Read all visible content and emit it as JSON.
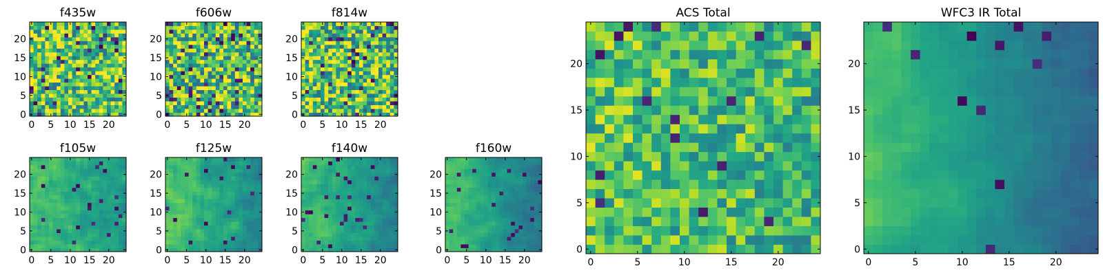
{
  "chart_data": [
    {
      "type": "heatmap",
      "title": "f435w",
      "xticks": [
        "0",
        "5",
        "10",
        "15",
        "20"
      ],
      "yticks": [
        "0",
        "5",
        "10",
        "15",
        "20"
      ],
      "grid_size": 25,
      "colormap": "viridis",
      "seed": 11,
      "gradient": 0.0,
      "noise": 0.7,
      "dark_fraction": 0.05
    },
    {
      "type": "heatmap",
      "title": "f606w",
      "xticks": [
        "0",
        "5",
        "10",
        "15",
        "20"
      ],
      "yticks": [
        "0",
        "5",
        "10",
        "15",
        "20"
      ],
      "grid_size": 25,
      "colormap": "viridis",
      "seed": 23,
      "gradient": 0.0,
      "noise": 0.75,
      "dark_fraction": 0.06
    },
    {
      "type": "heatmap",
      "title": "f814w",
      "xticks": [
        "0",
        "5",
        "10",
        "15",
        "20"
      ],
      "yticks": [
        "0",
        "5",
        "10",
        "15",
        "20"
      ],
      "grid_size": 25,
      "colormap": "viridis",
      "seed": 37,
      "gradient": 0.0,
      "noise": 0.75,
      "dark_fraction": 0.05
    },
    {
      "type": "heatmap",
      "title": "f105w",
      "xticks": [
        "0",
        "5",
        "10",
        "15",
        "20"
      ],
      "yticks": [
        "0",
        "5",
        "10",
        "15",
        "20"
      ],
      "grid_size": 25,
      "colormap": "viridis",
      "seed": 41,
      "gradient": 0.35,
      "noise": 0.45,
      "dark_fraction": 0.03
    },
    {
      "type": "heatmap",
      "title": "f125w",
      "xticks": [
        "0",
        "5",
        "10",
        "15",
        "20"
      ],
      "yticks": [
        "0",
        "5",
        "10",
        "15",
        "20"
      ],
      "grid_size": 25,
      "colormap": "viridis",
      "seed": 53,
      "gradient": 0.4,
      "noise": 0.45,
      "dark_fraction": 0.03
    },
    {
      "type": "heatmap",
      "title": "f140w",
      "xticks": [
        "0",
        "5",
        "10",
        "15",
        "20"
      ],
      "yticks": [
        "0",
        "5",
        "10",
        "15",
        "20"
      ],
      "grid_size": 25,
      "colormap": "viridis",
      "seed": 67,
      "gradient": 0.5,
      "noise": 0.4,
      "dark_fraction": 0.03
    },
    {
      "type": "heatmap",
      "title": "f160w",
      "xticks": [
        "0",
        "5",
        "10",
        "15",
        "20"
      ],
      "yticks": [
        "0",
        "5",
        "10",
        "15",
        "20"
      ],
      "grid_size": 25,
      "colormap": "viridis",
      "seed": 71,
      "gradient": 0.6,
      "noise": 0.35,
      "dark_fraction": 0.03
    },
    {
      "type": "heatmap",
      "title": "ACS Total",
      "xticks": [
        "0",
        "5",
        "10",
        "15",
        "20"
      ],
      "yticks": [
        "0",
        "5",
        "10",
        "15",
        "20"
      ],
      "grid_size": 25,
      "colormap": "viridis",
      "seed": 83,
      "gradient": 0.1,
      "noise": 0.5,
      "dark_fraction": 0.03
    },
    {
      "type": "heatmap",
      "title": "WFC3 IR Total",
      "xticks": [
        "0",
        "5",
        "10",
        "15",
        "20"
      ],
      "yticks": [
        "0",
        "5",
        "10",
        "15",
        "20"
      ],
      "grid_size": 25,
      "colormap": "viridis",
      "seed": 97,
      "gradient": 0.75,
      "noise": 0.25,
      "dark_fraction": 0.02
    }
  ]
}
